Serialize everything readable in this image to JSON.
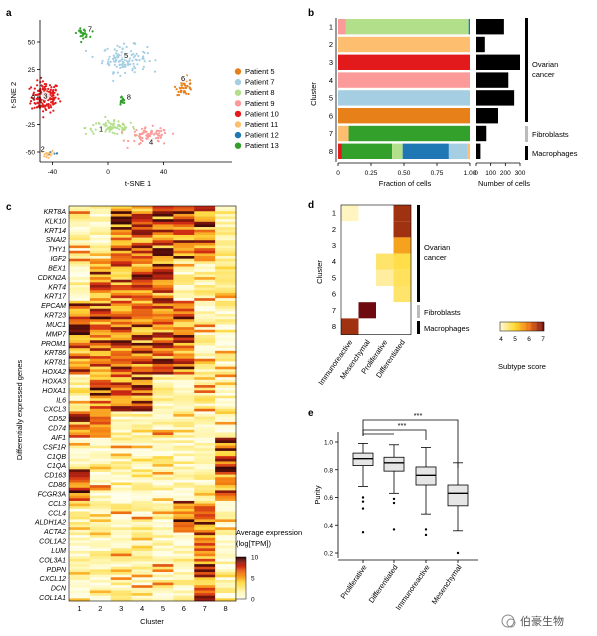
{
  "panels": {
    "a": "a",
    "b": "b",
    "c": "c",
    "d": "d",
    "e": "e"
  },
  "tsne": {
    "xlabel": "t-SNE 1",
    "ylabel": "t-SNE 2",
    "xticks": [
      "-40",
      "0",
      "40"
    ],
    "yticks": [
      "50",
      "25",
      "0",
      "-25",
      "-50"
    ],
    "legend": [
      {
        "label": "Patient 5",
        "color": "#e8801a"
      },
      {
        "label": "Patient 7",
        "color": "#a6cee3"
      },
      {
        "label": "Patient 8",
        "color": "#b2df8a"
      },
      {
        "label": "Patient 9",
        "color": "#fb9a99"
      },
      {
        "label": "Patient 10",
        "color": "#e31a1c"
      },
      {
        "label": "Patient 11",
        "color": "#fdbf6f"
      },
      {
        "label": "Patient 12",
        "color": "#1f78b4"
      },
      {
        "label": "Patient 13",
        "color": "#33a02c"
      }
    ],
    "cluster_labels": [
      "1",
      "2",
      "3",
      "4",
      "5",
      "6",
      "7",
      "8"
    ]
  },
  "panel_b": {
    "ylabel": "Cluster",
    "xlabel_frac": "Fraction of cells",
    "xlabel_num": "Number of cells",
    "frac_ticks": [
      "0",
      "0.25",
      "0.50",
      "0.75",
      "1.00"
    ],
    "num_ticks": [
      "0",
      "100",
      "200",
      "300"
    ],
    "clusters": [
      "1",
      "2",
      "3",
      "4",
      "5",
      "6",
      "7",
      "8"
    ],
    "group_labels": {
      "ovarian": "Ovarian\ncancer",
      "ovarian_1": "Ovarian",
      "ovarian_2": "cancer",
      "fibro": "Fibroblasts",
      "macro": "Macrophages"
    }
  },
  "chart_data": [
    {
      "type": "bar",
      "title": "",
      "xlabel": "Fraction of cells",
      "ylabel": "Cluster",
      "categories": [
        "1",
        "2",
        "3",
        "4",
        "5",
        "6",
        "7",
        "8"
      ],
      "stacked_fractions": [
        [
          {
            "patient": "Patient 9",
            "value": 0.06
          },
          {
            "patient": "Patient 8",
            "value": 0.93
          },
          {
            "patient": "Patient 12",
            "value": 0.01
          }
        ],
        [
          {
            "patient": "Patient 11",
            "value": 1.0
          }
        ],
        [
          {
            "patient": "Patient 10",
            "value": 1.0
          }
        ],
        [
          {
            "patient": "Patient 9",
            "value": 1.0
          }
        ],
        [
          {
            "patient": "Patient 7",
            "value": 1.0
          }
        ],
        [
          {
            "patient": "Patient 5",
            "value": 1.0
          }
        ],
        [
          {
            "patient": "Patient 11",
            "value": 0.08
          },
          {
            "patient": "Patient 13",
            "value": 0.92
          }
        ],
        [
          {
            "patient": "Patient 10",
            "value": 0.03
          },
          {
            "patient": "Patient 13",
            "value": 0.38
          },
          {
            "patient": "Patient 8",
            "value": 0.08
          },
          {
            "patient": "Patient 12",
            "value": 0.35
          },
          {
            "patient": "Patient 7",
            "value": 0.14
          },
          {
            "patient": "Patient 11",
            "value": 0.02
          }
        ]
      ],
      "xlim": [
        0,
        1
      ]
    },
    {
      "type": "bar",
      "xlabel": "Number of cells",
      "categories": [
        "1",
        "2",
        "3",
        "4",
        "5",
        "6",
        "7",
        "8"
      ],
      "values": [
        190,
        60,
        300,
        220,
        260,
        150,
        70,
        30
      ],
      "xlim": [
        0,
        300
      ]
    },
    {
      "type": "heatmap",
      "ylabel": "Differentially expressed genes",
      "xlabel": "Cluster",
      "x": [
        "1",
        "2",
        "3",
        "4",
        "5",
        "6",
        "7",
        "8"
      ],
      "gene_labels": [
        "KRT8A",
        "KLK10",
        "KRT14",
        "SNAI2",
        "THY1",
        "IGF2",
        "BEX1",
        "CDKN2A",
        "KRT4",
        "KRT17",
        "EPCAM",
        "KRT23",
        "MUC1",
        "MMP7",
        "PROM1",
        "KRT86",
        "KRT81",
        "HOXA2",
        "HOXA3",
        "HOXA1",
        "IL6",
        "CXCL3",
        "CD52",
        "CD74",
        "AIF1",
        "CSF1R",
        "C1QB",
        "C1QA",
        "CD163",
        "CD86",
        "FCGR3A",
        "CCL3",
        "CCL4",
        "ALDH1A2",
        "ACTA2",
        "COL1A2",
        "LUM",
        "COL3A1",
        "PDPN",
        "CXCL12",
        "DCN",
        "COL1A1"
      ],
      "legend_title_1": "Average expression",
      "legend_title_2": "(log[TPM])",
      "scale": [
        "0",
        "5",
        "10"
      ]
    },
    {
      "type": "heatmap",
      "ylabel": "Cluster",
      "x": [
        "Immunoreactive",
        "Mesenchymal",
        "Proliferative",
        "Differentiated"
      ],
      "y": [
        "1",
        "2",
        "3",
        "4",
        "5",
        "6",
        "7",
        "8"
      ],
      "values": [
        [
          4.1,
          0,
          0,
          6.6
        ],
        [
          0,
          0,
          0,
          6.6
        ],
        [
          0,
          0,
          0,
          5.5
        ],
        [
          0,
          0,
          4.6,
          4.8
        ],
        [
          0,
          0,
          4.3,
          4.7
        ],
        [
          0,
          0,
          0,
          4.6
        ],
        [
          0,
          7.0,
          0,
          0
        ],
        [
          6.6,
          0,
          0,
          0
        ]
      ],
      "legend_title": "Subtype score",
      "scale": [
        "4",
        "5",
        "6",
        "7"
      ],
      "group_labels": {
        "ovarian": "Ovarian cancer",
        "fibro": "Fibroblasts",
        "macro": "Macrophages"
      }
    },
    {
      "type": "box",
      "ylabel": "Purity",
      "categories": [
        "Proliferative",
        "Differentiated",
        "Immunoreactive",
        "Mesenchymal"
      ],
      "yticks": [
        "0.2",
        "0.4",
        "0.6",
        "0.8",
        "1.0"
      ],
      "ylim": [
        0.15,
        1.05
      ],
      "boxes": [
        {
          "min": 0.68,
          "q1": 0.83,
          "median": 0.88,
          "q3": 0.92,
          "max": 0.99,
          "outliers": [
            0.6,
            0.57,
            0.52,
            0.35
          ]
        },
        {
          "min": 0.63,
          "q1": 0.79,
          "median": 0.85,
          "q3": 0.89,
          "max": 0.98,
          "outliers": [
            0.59,
            0.56,
            0.37
          ]
        },
        {
          "min": 0.48,
          "q1": 0.69,
          "median": 0.76,
          "q3": 0.82,
          "max": 0.96,
          "outliers": [
            0.37,
            0.33
          ]
        },
        {
          "min": 0.36,
          "q1": 0.54,
          "median": 0.63,
          "q3": 0.69,
          "max": 0.85,
          "outliers": [
            0.2
          ]
        }
      ],
      "significance": [
        "***",
        "***"
      ]
    }
  ],
  "watermark": "伯豪生物"
}
